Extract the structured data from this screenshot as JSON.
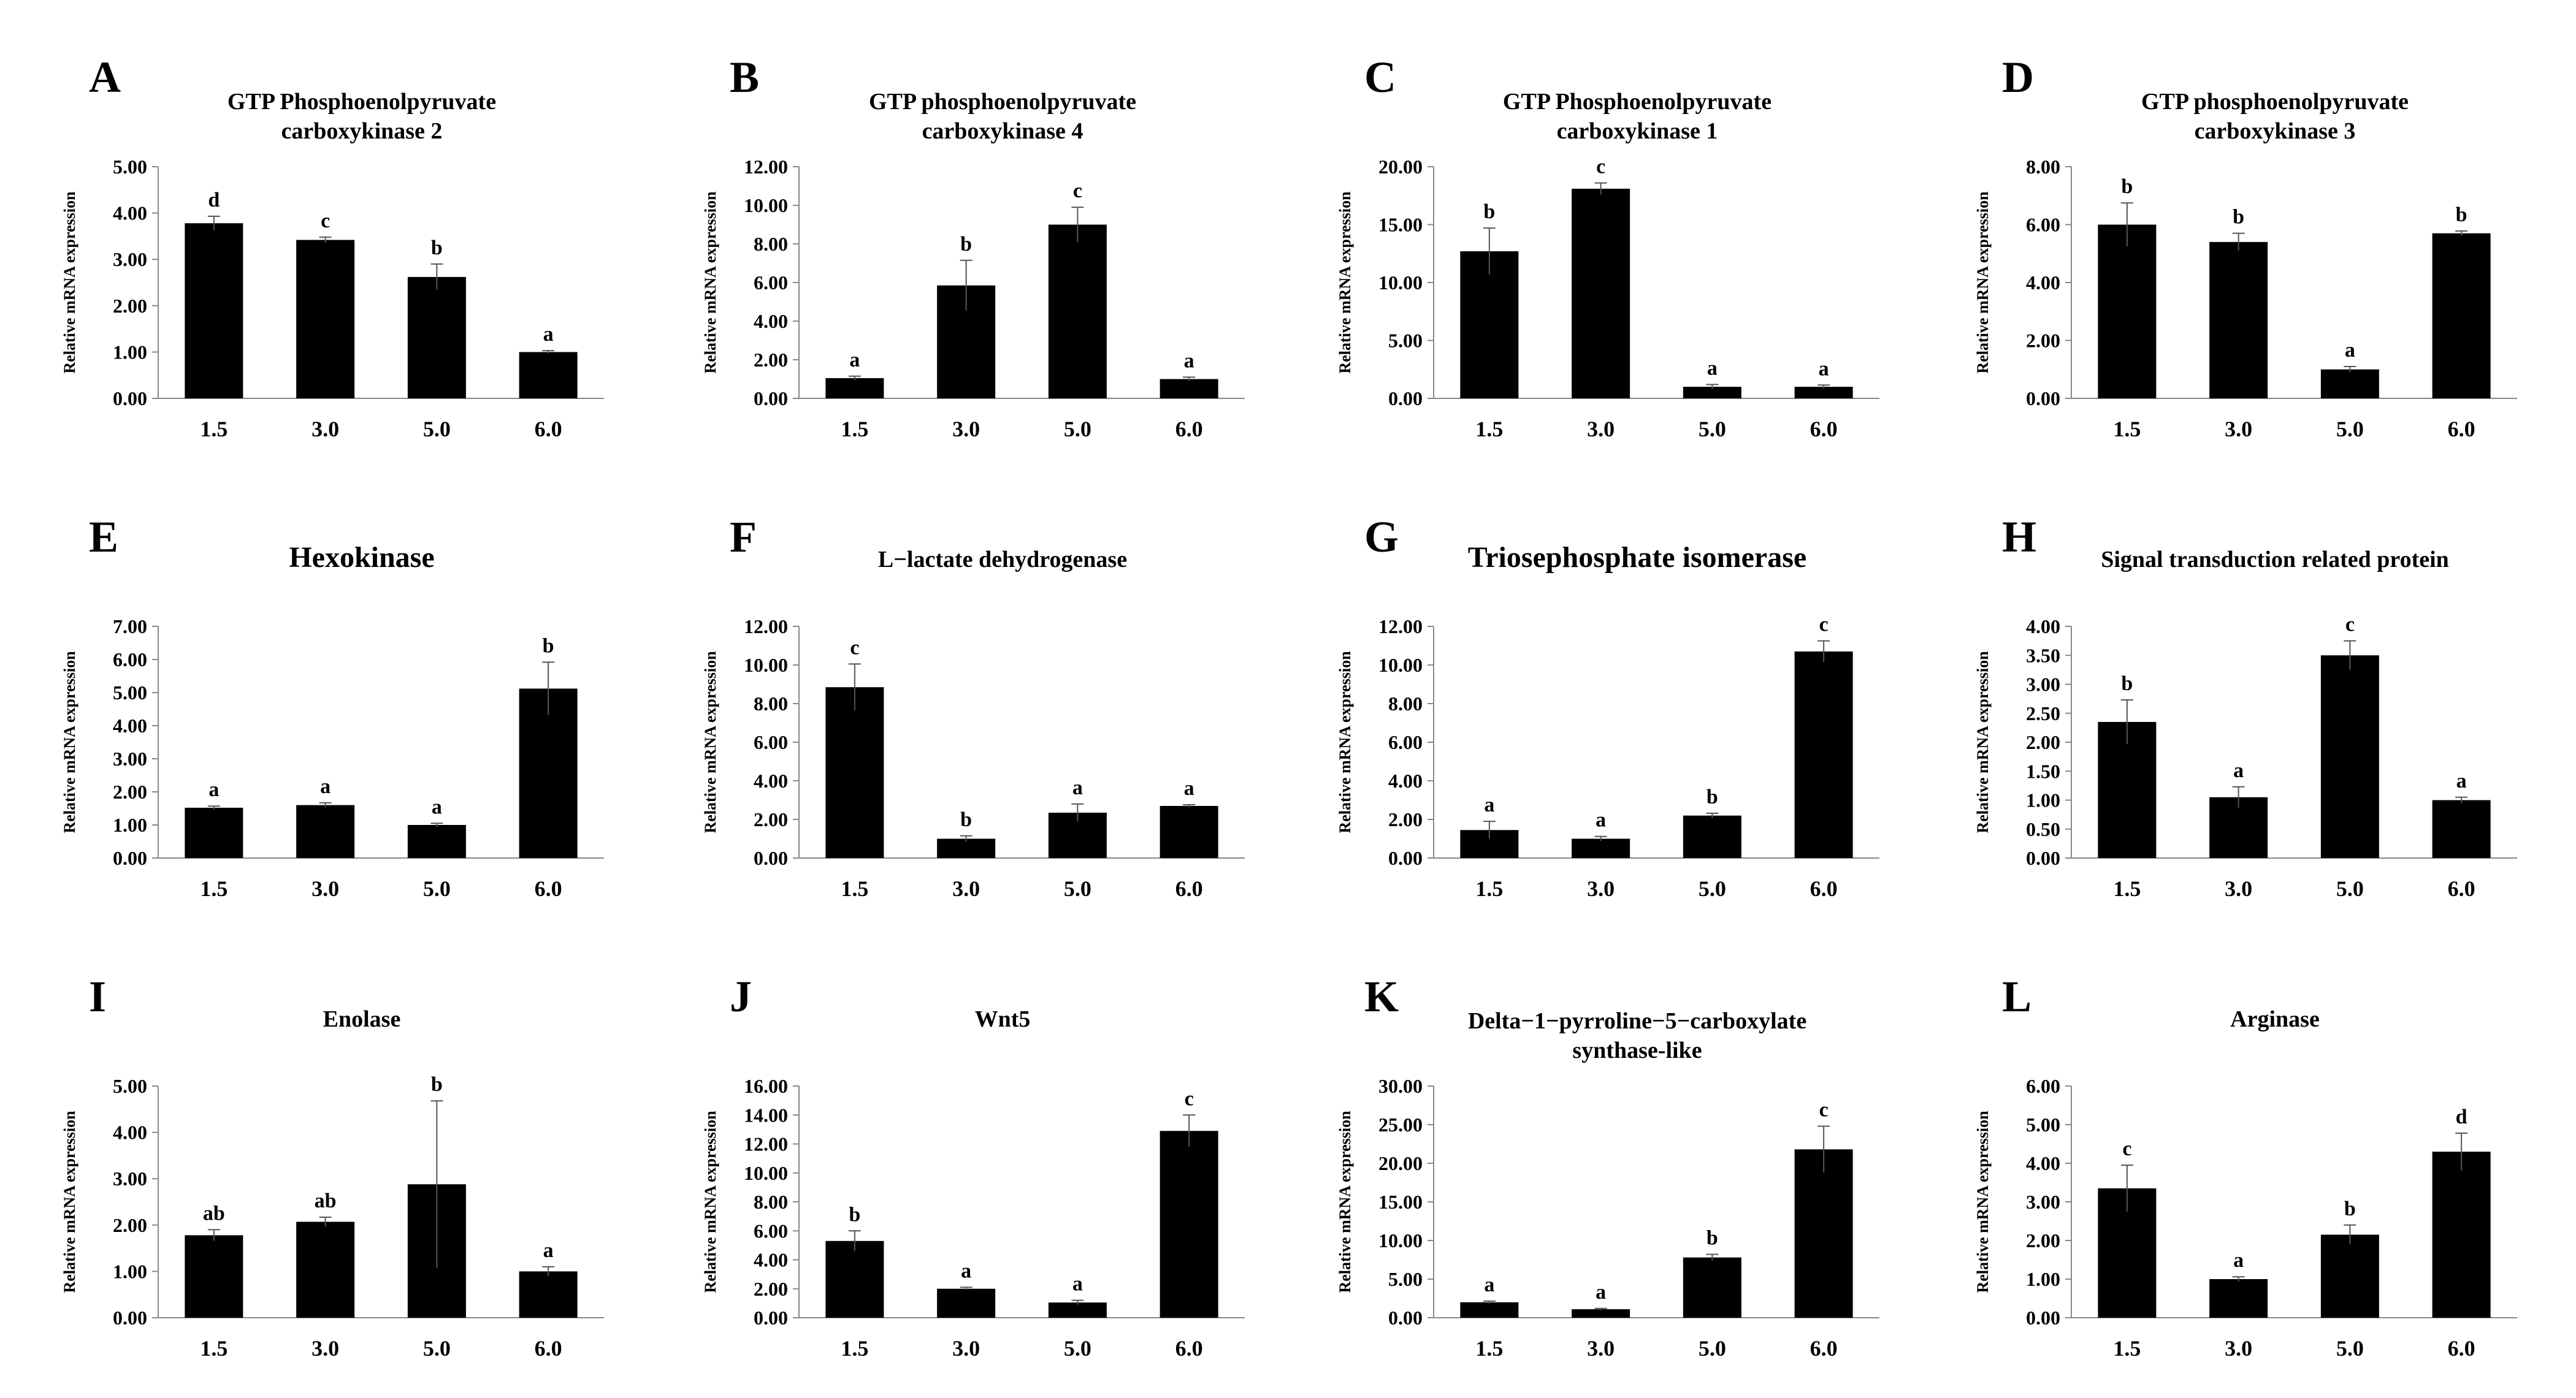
{
  "figure": {
    "panels": [
      {
        "letter": "A",
        "title": [
          "GTP Phosphoenolpyruvate",
          "carboxykinase 2"
        ],
        "ylabel": "Relative mRNA expression"
      },
      {
        "letter": "B",
        "title": [
          "GTP phosphoenolpyruvate",
          "carboxykinase 4"
        ],
        "ylabel": "Relative mRNA expression"
      },
      {
        "letter": "C",
        "title": [
          "GTP Phosphoenolpyruvate",
          "carboxykinase 1"
        ],
        "ylabel": "Relative mRNA expression"
      },
      {
        "letter": "D",
        "title": [
          "GTP phosphoenolpyruvate",
          "carboxykinase 3"
        ],
        "ylabel": "Relative mRNA expression"
      },
      {
        "letter": "E",
        "title": [
          "Hexokinase"
        ],
        "ylabel": "Relative mRNA expression"
      },
      {
        "letter": "F",
        "title": [
          "L−lactate dehydrogenase"
        ],
        "ylabel": "Relative mRNA expression"
      },
      {
        "letter": "G",
        "title": [
          "Triosephosphate isomerase"
        ],
        "ylabel": "Relative mRNA expression"
      },
      {
        "letter": "H",
        "title": [
          "Signal transduction related protein"
        ],
        "ylabel": "Relative mRNA expression"
      },
      {
        "letter": "I",
        "title": [
          "Enolase"
        ],
        "ylabel": "Relative mRNA expression"
      },
      {
        "letter": "J",
        "title": [
          "Wnt5"
        ],
        "ylabel": "Relative mRNA expression"
      },
      {
        "letter": "K",
        "title": [
          "Delta−1−pyrroline−5−carboxylate",
          "synthase-like"
        ],
        "ylabel": "Relative mRNA expression"
      },
      {
        "letter": "L",
        "title": [
          "Arginase"
        ],
        "ylabel": "Relative mRNA expression"
      }
    ]
  },
  "chart_data": [
    {
      "type": "bar",
      "title": "GTP Phosphoenolpyruvate carboxykinase 2",
      "xlabel": "",
      "ylabel": "Relative mRNA expression",
      "categories": [
        "1.5",
        "3.0",
        "5.0",
        "6.0"
      ],
      "values": [
        3.78,
        3.42,
        2.62,
        1.0
      ],
      "errors": [
        0.15,
        0.06,
        0.28,
        0.03
      ],
      "labels": [
        "d",
        "c",
        "b",
        "a"
      ],
      "ylim": [
        0,
        5
      ],
      "yticks": [
        "0.00",
        "1.00",
        "2.00",
        "3.00",
        "4.00",
        "5.00"
      ],
      "grid": false
    },
    {
      "type": "bar",
      "title": "GTP phosphoenolpyruvate carboxykinase 4",
      "xlabel": "",
      "ylabel": "Relative mRNA expression",
      "categories": [
        "1.5",
        "3.0",
        "5.0",
        "6.0"
      ],
      "values": [
        1.05,
        5.85,
        9.0,
        1.0
      ],
      "errors": [
        0.1,
        1.3,
        0.9,
        0.1
      ],
      "labels": [
        "a",
        "b",
        "c",
        "a"
      ],
      "ylim": [
        0,
        12
      ],
      "yticks": [
        "0.00",
        "2.00",
        "4.00",
        "6.00",
        "8.00",
        "10.00",
        "12.00"
      ],
      "grid": false
    },
    {
      "type": "bar",
      "title": "GTP Phosphoenolpyruvate carboxykinase 1",
      "xlabel": "",
      "ylabel": "Relative mRNA expression",
      "categories": [
        "1.5",
        "3.0",
        "5.0",
        "6.0"
      ],
      "values": [
        12.7,
        18.1,
        1.0,
        1.0
      ],
      "errors": [
        2.0,
        0.5,
        0.2,
        0.15
      ],
      "labels": [
        "b",
        "c",
        "a",
        "a"
      ],
      "ylim": [
        0,
        20
      ],
      "yticks": [
        "0.00",
        "5.00",
        "10.00",
        "15.00",
        "20.00"
      ],
      "grid": false
    },
    {
      "type": "bar",
      "title": "GTP phosphoenolpyruvate carboxykinase 3",
      "xlabel": "",
      "ylabel": "Relative mRNA expression",
      "categories": [
        "1.5",
        "3.0",
        "5.0",
        "6.0"
      ],
      "values": [
        6.0,
        5.4,
        1.0,
        5.7
      ],
      "errors": [
        0.75,
        0.3,
        0.1,
        0.08
      ],
      "labels": [
        "b",
        "b",
        "a",
        "b"
      ],
      "ylim": [
        0,
        8
      ],
      "yticks": [
        "0.00",
        "2.00",
        "4.00",
        "6.00",
        "8.00"
      ],
      "grid": false
    },
    {
      "type": "bar",
      "title": "Hexokinase",
      "xlabel": "",
      "ylabel": "Relative mRNA expression",
      "categories": [
        "1.5",
        "3.0",
        "5.0",
        "6.0"
      ],
      "values": [
        1.52,
        1.6,
        1.0,
        5.12
      ],
      "errors": [
        0.05,
        0.07,
        0.05,
        0.8
      ],
      "labels": [
        "a",
        "a",
        "a",
        "b"
      ],
      "ylim": [
        0,
        7
      ],
      "yticks": [
        "0.00",
        "1.00",
        "2.00",
        "3.00",
        "4.00",
        "5.00",
        "6.00",
        "7.00"
      ],
      "grid": false
    },
    {
      "type": "bar",
      "title": "L−lactate dehydrogenase",
      "xlabel": "",
      "ylabel": "Relative mRNA expression",
      "categories": [
        "1.5",
        "3.0",
        "5.0",
        "6.0"
      ],
      "values": [
        8.85,
        1.0,
        2.35,
        2.7
      ],
      "errors": [
        1.2,
        0.15,
        0.45,
        0.06
      ],
      "labels": [
        "c",
        "b",
        "a",
        "a"
      ],
      "ylim": [
        0,
        12
      ],
      "yticks": [
        "0.00",
        "2.00",
        "4.00",
        "6.00",
        "8.00",
        "10.00",
        "12.00"
      ],
      "grid": false
    },
    {
      "type": "bar",
      "title": "Triosephosphate isomerase",
      "xlabel": "",
      "ylabel": "Relative mRNA expression",
      "categories": [
        "1.5",
        "3.0",
        "5.0",
        "6.0"
      ],
      "values": [
        1.45,
        1.0,
        2.2,
        10.7
      ],
      "errors": [
        0.45,
        0.12,
        0.12,
        0.55
      ],
      "labels": [
        "a",
        "a",
        "b",
        "c"
      ],
      "ylim": [
        0,
        12
      ],
      "yticks": [
        "0.00",
        "2.00",
        "4.00",
        "6.00",
        "8.00",
        "10.00",
        "12.00"
      ],
      "grid": false
    },
    {
      "type": "bar",
      "title": "Signal transduction related protein",
      "xlabel": "",
      "ylabel": "Relative mRNA expression",
      "categories": [
        "1.5",
        "3.0",
        "5.0",
        "6.0"
      ],
      "values": [
        2.35,
        1.05,
        3.5,
        1.0
      ],
      "errors": [
        0.38,
        0.18,
        0.25,
        0.05
      ],
      "labels": [
        "b",
        "a",
        "c",
        "a"
      ],
      "ylim": [
        0,
        4
      ],
      "yticks": [
        "0.00",
        "0.50",
        "1.00",
        "1.50",
        "2.00",
        "2.50",
        "3.00",
        "3.50",
        "4.00"
      ],
      "grid": false
    },
    {
      "type": "bar",
      "title": "Enolase",
      "xlabel": "",
      "ylabel": "Relative mRNA expression",
      "categories": [
        "1.5",
        "3.0",
        "5.0",
        "6.0"
      ],
      "values": [
        1.78,
        2.07,
        2.88,
        1.0
      ],
      "errors": [
        0.12,
        0.1,
        1.8,
        0.1
      ],
      "labels": [
        "ab",
        "ab",
        "b",
        "a"
      ],
      "ylim": [
        0,
        5
      ],
      "yticks": [
        "0.00",
        "1.00",
        "2.00",
        "3.00",
        "4.00",
        "5.00"
      ],
      "grid": false
    },
    {
      "type": "bar",
      "title": "Wnt5",
      "xlabel": "",
      "ylabel": "Relative mRNA expression",
      "categories": [
        "1.5",
        "3.0",
        "5.0",
        "6.0"
      ],
      "values": [
        5.3,
        2.0,
        1.05,
        12.9
      ],
      "errors": [
        0.7,
        0.1,
        0.15,
        1.1
      ],
      "labels": [
        "b",
        "a",
        "a",
        "c"
      ],
      "ylim": [
        0,
        16
      ],
      "yticks": [
        "0.00",
        "2.00",
        "4.00",
        "6.00",
        "8.00",
        "10.00",
        "12.00",
        "14.00",
        "16.00"
      ],
      "grid": false
    },
    {
      "type": "bar",
      "title": "Delta−1−pyrroline−5−carboxylate synthase-like",
      "xlabel": "",
      "ylabel": "Relative mRNA expression",
      "categories": [
        "1.5",
        "3.0",
        "5.0",
        "6.0"
      ],
      "values": [
        2.0,
        1.1,
        7.8,
        21.8
      ],
      "errors": [
        0.15,
        0.1,
        0.4,
        3.0
      ],
      "labels": [
        "a",
        "a",
        "b",
        "c"
      ],
      "ylim": [
        0,
        30
      ],
      "yticks": [
        "0.00",
        "5.00",
        "10.00",
        "15.00",
        "20.00",
        "25.00",
        "30.00"
      ],
      "grid": false
    },
    {
      "type": "bar",
      "title": "Arginase",
      "xlabel": "",
      "ylabel": "Relative mRNA expression",
      "categories": [
        "1.5",
        "3.0",
        "5.0",
        "6.0"
      ],
      "values": [
        3.35,
        1.0,
        2.15,
        4.3
      ],
      "errors": [
        0.6,
        0.06,
        0.25,
        0.48
      ],
      "labels": [
        "c",
        "a",
        "b",
        "d"
      ],
      "ylim": [
        0,
        6
      ],
      "yticks": [
        "0.00",
        "1.00",
        "2.00",
        "3.00",
        "4.00",
        "5.00",
        "6.00"
      ],
      "grid": false
    }
  ]
}
